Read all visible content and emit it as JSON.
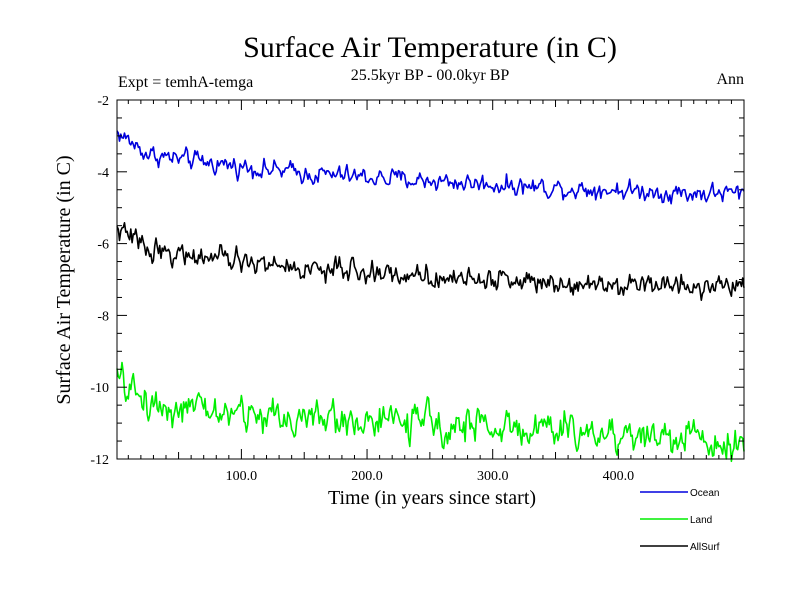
{
  "chart_data": {
    "type": "line",
    "title": "Surface Air Temperature (in C)",
    "subtitle": "25.5kyr BP - 00.0kyr BP",
    "left_label": "Expt = temhA-temga",
    "right_label": "Ann",
    "xlabel": "Time (in years since start)",
    "ylabel": "Surface Air Temperature (in C)",
    "xlim": [
      1,
      500
    ],
    "ylim": [
      -12,
      -2
    ],
    "x_ticks": [
      100,
      200,
      300,
      400
    ],
    "x_tick_labels": [
      "100.0",
      "200.0",
      "300.0",
      "400.0"
    ],
    "y_ticks": [
      -12,
      -10,
      -8,
      -6,
      -4,
      -2
    ],
    "y_tick_labels": [
      "-12",
      "-10",
      "-8",
      "-6",
      "-4",
      "-2"
    ],
    "series": [
      {
        "name": "Ocean",
        "color": "#0000dd",
        "trend_x": [
          1,
          25,
          50,
          100,
          150,
          200,
          250,
          300,
          350,
          400,
          450,
          500
        ],
        "trend_y": [
          -2.9,
          -3.5,
          -3.65,
          -3.85,
          -4.05,
          -4.15,
          -4.25,
          -4.35,
          -4.45,
          -4.5,
          -4.6,
          -4.6
        ],
        "noise": 0.12
      },
      {
        "name": "Land",
        "color": "#00ee00",
        "trend_x": [
          1,
          25,
          50,
          100,
          150,
          200,
          250,
          300,
          350,
          400,
          450,
          500
        ],
        "trend_y": [
          -9.8,
          -10.4,
          -10.6,
          -10.75,
          -10.85,
          -10.95,
          -11.0,
          -11.1,
          -11.2,
          -11.3,
          -11.4,
          -11.5
        ],
        "noise": 0.22
      },
      {
        "name": "AllSurf",
        "color": "#000000",
        "trend_x": [
          1,
          25,
          50,
          100,
          150,
          200,
          250,
          300,
          350,
          400,
          450,
          500
        ],
        "trend_y": [
          -5.6,
          -6.1,
          -6.3,
          -6.5,
          -6.7,
          -6.8,
          -6.9,
          -7.0,
          -7.05,
          -7.1,
          -7.15,
          -7.2
        ],
        "noise": 0.14
      }
    ],
    "legend": [
      "Ocean",
      "Land",
      "AllSurf"
    ],
    "legend_position": "bottom-right"
  }
}
